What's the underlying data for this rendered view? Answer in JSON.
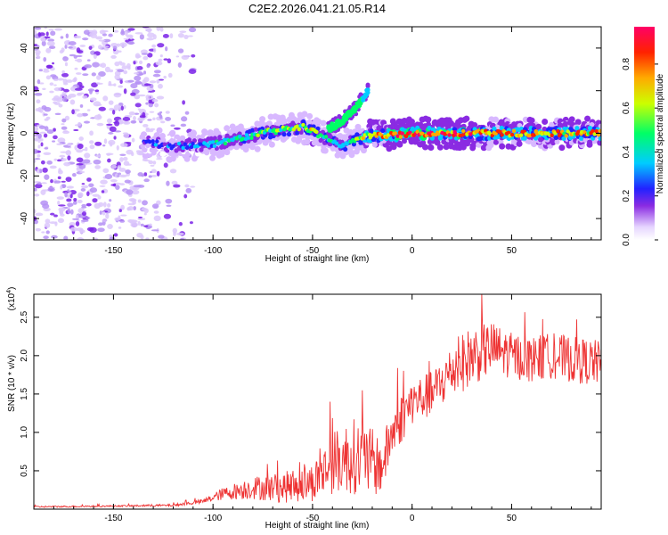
{
  "title": "C2E2.2026.041.21.05.R14",
  "colors": {
    "snr_line": "#ee3333",
    "frame": "#000000",
    "colormap": [
      "#ffffff",
      "#d8b8ff",
      "#8a2be2",
      "#2222ff",
      "#00ccff",
      "#00ff66",
      "#ccff00",
      "#ffaa00",
      "#ff2200",
      "#ff0066"
    ]
  },
  "chart_data": [
    {
      "id": "spectrogram",
      "type": "heatmap",
      "xlabel": "Height of straight line (km)",
      "ylabel": "Frequency (Hz)",
      "xlim": [
        -190,
        95
      ],
      "ylim": [
        -50,
        50
      ],
      "xticks": [
        -150,
        -100,
        -50,
        0,
        50
      ],
      "xtick_labels": [
        "-150",
        "-100",
        "-50",
        "0",
        "50"
      ],
      "yticks": [
        -40,
        -20,
        0,
        20,
        40
      ],
      "ytick_labels": [
        "-40",
        "-20",
        "0",
        "20",
        "40"
      ],
      "colorbar": {
        "label": "Normalized spectral amplitude",
        "range": [
          0,
          0.97
        ],
        "ticks": [
          0.0,
          0.2,
          0.4,
          0.6,
          0.8
        ],
        "tick_labels": [
          "0.0",
          "0.2",
          "0.4",
          "0.6",
          "0.8"
        ]
      },
      "noise_region": {
        "x_from": -190,
        "x_to": -125,
        "amplitude": 0.2
      },
      "ridge": {
        "x": [
          -135,
          -120,
          -100,
          -85,
          -70,
          -55,
          -50,
          -45,
          -40,
          -35,
          -30,
          -20,
          -10,
          0,
          20,
          40,
          60,
          80,
          95
        ],
        "freq": [
          -4,
          -6,
          -5,
          -2,
          1,
          3,
          1,
          -2,
          -4,
          -6,
          -3,
          -1,
          -1,
          0,
          0,
          0,
          0,
          0,
          0
        ],
        "amplitude": [
          0.35,
          0.35,
          0.45,
          0.5,
          0.55,
          0.55,
          0.65,
          0.5,
          0.5,
          0.5,
          0.55,
          0.7,
          0.85,
          0.9,
          0.8,
          0.75,
          0.75,
          0.7,
          0.7
        ]
      },
      "branch": {
        "x": [
          -42,
          -35,
          -30,
          -25,
          -22
        ],
        "freq": [
          2,
          6,
          10,
          16,
          20
        ],
        "amplitude": [
          0.4,
          0.45,
          0.45,
          0.4,
          0.35
        ]
      }
    },
    {
      "id": "snr",
      "type": "line",
      "xlabel": "Height of straight line (km)",
      "ylabel": "SNR (10 * v/v)",
      "yscale_label": "(x10",
      "yscale_exp": "4",
      "yscale_close": ")",
      "xlim": [
        -190,
        95
      ],
      "ylim": [
        0,
        28000
      ],
      "xticks": [
        -150,
        -100,
        -50,
        0,
        50
      ],
      "xtick_labels": [
        "-150",
        "-100",
        "-50",
        "0",
        "50"
      ],
      "yticks": [
        5000,
        10000,
        15000,
        20000,
        25000
      ],
      "ytick_labels": [
        "0.5",
        "1.0",
        "1.5",
        "2.0",
        "2.5"
      ],
      "envelope": {
        "x": [
          -190,
          -150,
          -120,
          -105,
          -95,
          -80,
          -65,
          -50,
          -40,
          -30,
          -20,
          -15,
          -10,
          0,
          10,
          20,
          30,
          40,
          50,
          60,
          70,
          80,
          95
        ],
        "mean": [
          300,
          400,
          500,
          1000,
          2000,
          2800,
          2800,
          3500,
          6000,
          7000,
          6000,
          5500,
          10000,
          14000,
          15000,
          18000,
          20000,
          21000,
          20000,
          19500,
          20000,
          19500,
          19000
        ],
        "amplitude": [
          100,
          100,
          150,
          300,
          800,
          1500,
          2000,
          2500,
          4000,
          5000,
          4500,
          3500,
          3500,
          3000,
          3000,
          3500,
          4000,
          3500,
          3000,
          3000,
          3000,
          3000,
          3000
        ]
      }
    }
  ]
}
